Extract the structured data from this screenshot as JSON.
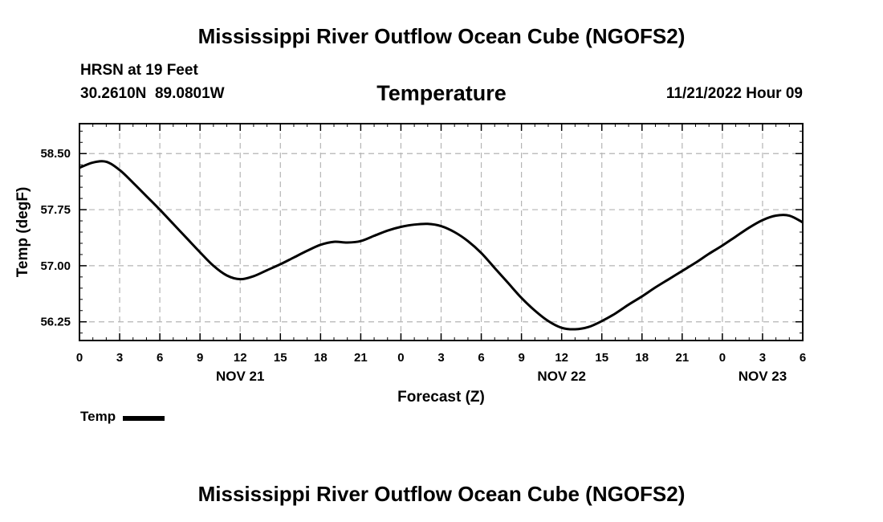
{
  "header": {
    "title": "Mississippi River Outflow Ocean Cube (NGOFS2)",
    "station": "HRSN at 19 Feet",
    "coordinates": "30.2610N  89.0801W",
    "chart_title": "Temperature",
    "datetime": "11/21/2022 Hour 09"
  },
  "footer": {
    "title": "Mississippi River Outflow Ocean Cube (NGOFS2)"
  },
  "legend": {
    "label": "Temp",
    "color": "#000000"
  },
  "chart_data": {
    "type": "line",
    "title": "Temperature",
    "xlabel": "Forecast (Z)",
    "ylabel": "Temp (degF)",
    "xlim": [
      0,
      54
    ],
    "ylim": [
      56.0,
      58.9
    ],
    "grid": true,
    "x_ticks": [
      0,
      3,
      6,
      9,
      12,
      15,
      18,
      21,
      24,
      27,
      30,
      33,
      36,
      39,
      42,
      45,
      48,
      51,
      54
    ],
    "x_tick_labels": [
      "0",
      "3",
      "6",
      "9",
      "12",
      "15",
      "18",
      "21",
      "0",
      "3",
      "6",
      "9",
      "12",
      "15",
      "18",
      "21",
      "0",
      "3",
      "6"
    ],
    "day_labels": [
      {
        "x": 12,
        "label": "NOV 21"
      },
      {
        "x": 36,
        "label": "NOV 22"
      },
      {
        "x": 51,
        "label": "NOV 23"
      }
    ],
    "y_ticks": [
      56.25,
      57.0,
      57.75,
      58.5
    ],
    "y_tick_labels": [
      "56.25",
      "57.00",
      "57.75",
      "58.50"
    ],
    "series": [
      {
        "name": "Temp",
        "color": "#000000",
        "x": [
          0,
          1,
          2,
          3,
          4,
          5,
          6,
          7,
          8,
          9,
          10,
          11,
          12,
          13,
          14,
          15,
          16,
          17,
          18,
          19,
          20,
          21,
          22,
          23,
          24,
          25,
          26,
          27,
          28,
          29,
          30,
          31,
          32,
          33,
          34,
          35,
          36,
          37,
          38,
          39,
          40,
          41,
          42,
          43,
          44,
          45,
          46,
          47,
          48,
          49,
          50,
          51,
          52,
          53,
          54
        ],
        "values": [
          58.31,
          58.38,
          58.39,
          58.28,
          58.11,
          57.93,
          57.75,
          57.56,
          57.37,
          57.18,
          57.0,
          56.87,
          56.82,
          56.86,
          56.94,
          57.02,
          57.11,
          57.2,
          57.28,
          57.32,
          57.31,
          57.33,
          57.4,
          57.47,
          57.52,
          57.55,
          57.56,
          57.53,
          57.45,
          57.33,
          57.17,
          56.97,
          56.77,
          56.57,
          56.4,
          56.26,
          56.17,
          56.15,
          56.18,
          56.26,
          56.36,
          56.48,
          56.59,
          56.71,
          56.82,
          56.93,
          57.04,
          57.16,
          57.27,
          57.39,
          57.51,
          57.61,
          57.67,
          57.67,
          57.58
        ]
      }
    ]
  }
}
